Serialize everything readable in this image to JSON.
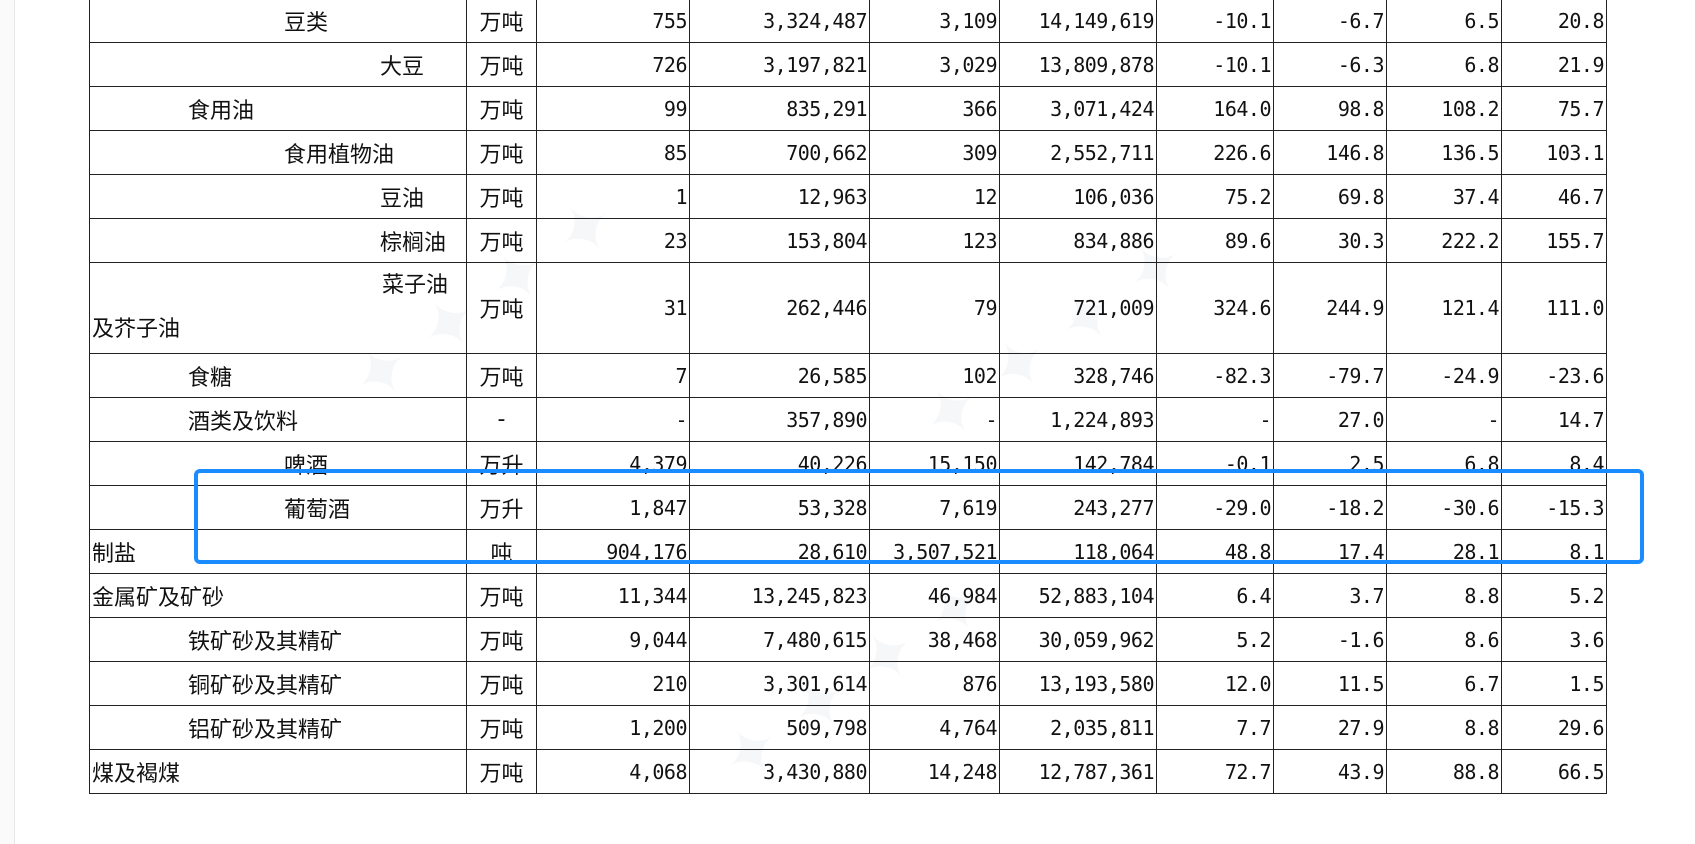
{
  "rows": [
    {
      "name": "豆类",
      "level": 2,
      "unit": "万吨",
      "v": [
        "755",
        "3,324,487",
        "3,109",
        "14,149,619",
        "-10.1",
        "-6.7",
        "6.5",
        "20.8"
      ]
    },
    {
      "name": "大豆",
      "level": 3,
      "unit": "万吨",
      "v": [
        "726",
        "3,197,821",
        "3,029",
        "13,809,878",
        "-10.1",
        "-6.3",
        "6.8",
        "21.9"
      ]
    },
    {
      "name": "食用油",
      "level": 1,
      "unit": "万吨",
      "v": [
        "99",
        "835,291",
        "366",
        "3,071,424",
        "164.0",
        "98.8",
        "108.2",
        "75.7"
      ]
    },
    {
      "name": "食用植物油",
      "level": 2,
      "unit": "万吨",
      "v": [
        "85",
        "700,662",
        "309",
        "2,552,711",
        "226.6",
        "146.8",
        "136.5",
        "103.1"
      ]
    },
    {
      "name": "豆油",
      "level": 3,
      "unit": "万吨",
      "v": [
        "1",
        "12,963",
        "12",
        "106,036",
        "75.2",
        "69.8",
        "37.4",
        "46.7"
      ]
    },
    {
      "name": "棕榈油",
      "level": 3,
      "unit": "万吨",
      "v": [
        "23",
        "153,804",
        "123",
        "834,886",
        "89.6",
        "30.3",
        "222.2",
        "155.7"
      ]
    },
    {
      "name_line1": "菜子油",
      "name_line2": "及芥子油",
      "level": 3,
      "unit": "万吨",
      "v": [
        "31",
        "262,446",
        "79",
        "721,009",
        "324.6",
        "244.9",
        "121.4",
        "111.0"
      ]
    },
    {
      "name": "食糖",
      "level": 1,
      "unit": "万吨",
      "v": [
        "7",
        "26,585",
        "102",
        "328,746",
        "-82.3",
        "-79.7",
        "-24.9",
        "-23.6"
      ]
    },
    {
      "name": "酒类及饮料",
      "level": 1,
      "unit": "-",
      "v": [
        "-",
        "357,890",
        "-",
        "1,224,893",
        "-",
        "27.0",
        "-",
        "14.7"
      ]
    },
    {
      "name": "啤酒",
      "level": 2,
      "unit": "万升",
      "v": [
        "4,379",
        "40,226",
        "15,150",
        "142,784",
        "-0.1",
        "2.5",
        "6.8",
        "8.4"
      ]
    },
    {
      "name": "葡萄酒",
      "level": 2,
      "unit": "万升",
      "v": [
        "1,847",
        "53,328",
        "7,619",
        "243,277",
        "-29.0",
        "-18.2",
        "-30.6",
        "-15.3"
      ]
    },
    {
      "name": "制盐",
      "level": 0,
      "unit": "吨",
      "v": [
        "904,176",
        "28,610",
        "3,507,521",
        "118,064",
        "48.8",
        "17.4",
        "28.1",
        "8.1"
      ]
    },
    {
      "name": "金属矿及矿砂",
      "level": 0,
      "unit": "万吨",
      "v": [
        "11,344",
        "13,245,823",
        "46,984",
        "52,883,104",
        "6.4",
        "3.7",
        "8.8",
        "5.2"
      ]
    },
    {
      "name": "铁矿砂及其精矿",
      "level": 1,
      "unit": "万吨",
      "v": [
        "9,044",
        "7,480,615",
        "38,468",
        "30,059,962",
        "5.2",
        "-1.6",
        "8.6",
        "3.6"
      ]
    },
    {
      "name": "铜矿砂及其精矿",
      "level": 1,
      "unit": "万吨",
      "v": [
        "210",
        "3,301,614",
        "876",
        "13,193,580",
        "12.0",
        "11.5",
        "6.7",
        "1.5"
      ]
    },
    {
      "name": "铝矿砂及其精矿",
      "level": 1,
      "unit": "万吨",
      "v": [
        "1,200",
        "509,798",
        "4,764",
        "2,035,811",
        "7.7",
        "27.9",
        "8.8",
        "29.6"
      ]
    },
    {
      "name": "煤及褐煤",
      "level": 0,
      "unit": "万吨",
      "v": [
        "4,068",
        "3,430,880",
        "14,248",
        "12,787,361",
        "72.7",
        "43.9",
        "88.8",
        "66.5"
      ]
    }
  ],
  "colors": {
    "grid": "#222222",
    "highlight": "#1a8cff"
  }
}
